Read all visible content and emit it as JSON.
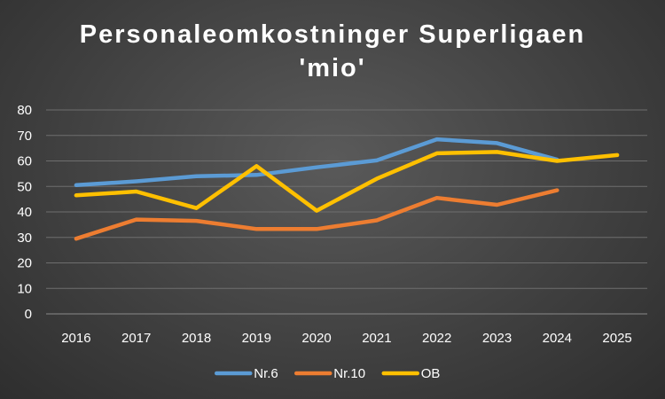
{
  "chart_data": {
    "type": "line",
    "title_line1": "Personaleomkostninger Superligaen",
    "title_line2": "'mio'",
    "xlabel": "",
    "ylabel": "",
    "categories": [
      "2016",
      "2017",
      "2018",
      "2019",
      "2020",
      "2021",
      "2022",
      "2023",
      "2024",
      "2025"
    ],
    "ylim": [
      0,
      80
    ],
    "yticks": [
      0,
      10,
      20,
      30,
      40,
      50,
      60,
      70,
      80
    ],
    "grid": true,
    "legend_position": "bottom",
    "series": [
      {
        "name": "Nr.6",
        "color": "#5b9bd5",
        "values": [
          50.5,
          52,
          54,
          54.5,
          57.5,
          60.2,
          68.5,
          67,
          60.5,
          null
        ]
      },
      {
        "name": "Nr.10",
        "color": "#ed7d31",
        "values": [
          29.5,
          37,
          36.5,
          33.3,
          33.3,
          36.7,
          45.5,
          42.8,
          48.5,
          null
        ]
      },
      {
        "name": "OB",
        "color": "#ffc000",
        "values": [
          46.5,
          48,
          41.5,
          58,
          40.5,
          53,
          63,
          63.5,
          60,
          62.3
        ]
      }
    ]
  }
}
